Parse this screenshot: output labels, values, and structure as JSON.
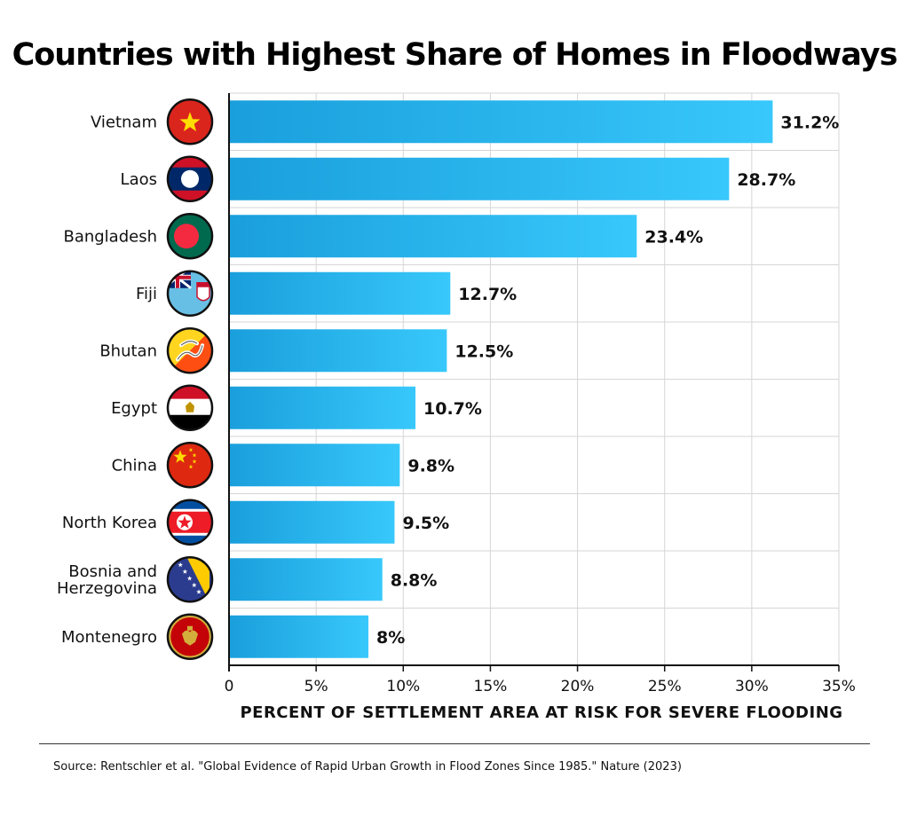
{
  "chart_data": {
    "type": "bar",
    "orientation": "horizontal",
    "title": "Countries with Highest Share of Homes in Floodways",
    "xlabel": "PERCENT OF SETTLEMENT AREA AT RISK FOR SEVERE FLOODING",
    "categories": [
      "Vietnam",
      "Laos",
      "Bangladesh",
      "Fiji",
      "Bhutan",
      "Egypt",
      "China",
      "North Korea",
      "Bosnia and Herzegovina",
      "Montenegro"
    ],
    "category_lines": [
      [
        "Vietnam"
      ],
      [
        "Laos"
      ],
      [
        "Bangladesh"
      ],
      [
        "Fiji"
      ],
      [
        "Bhutan"
      ],
      [
        "Egypt"
      ],
      [
        "China"
      ],
      [
        "North Korea"
      ],
      [
        "Bosnia and",
        "Herzegovina"
      ],
      [
        "Montenegro"
      ]
    ],
    "values": [
      31.2,
      28.7,
      23.4,
      12.7,
      12.5,
      10.7,
      9.8,
      9.5,
      8.8,
      8
    ],
    "value_labels": [
      "31.2%",
      "28.7%",
      "23.4%",
      "12.7%",
      "12.5%",
      "10.7%",
      "9.8%",
      "9.5%",
      "8.8%",
      "8%"
    ],
    "flag_icons": [
      "vietnam-flag-icon",
      "laos-flag-icon",
      "bangladesh-flag-icon",
      "fiji-flag-icon",
      "bhutan-flag-icon",
      "egypt-flag-icon",
      "china-flag-icon",
      "north-korea-flag-icon",
      "bosnia-flag-icon",
      "montenegro-flag-icon"
    ],
    "xlim": [
      0,
      35
    ],
    "xticks": [
      0,
      5,
      10,
      15,
      20,
      25,
      30,
      35
    ],
    "xtick_labels": [
      "0",
      "5%",
      "10%",
      "15%",
      "20%",
      "25%",
      "30%",
      "35%"
    ],
    "grid": true,
    "bar_color_start": "#1a9fdc",
    "bar_color_end": "#38c8fb"
  },
  "source": "Source: Rentschler et al. \"Global Evidence of Rapid Urban Growth in Flood Zones Since 1985.\" Nature (2023)"
}
